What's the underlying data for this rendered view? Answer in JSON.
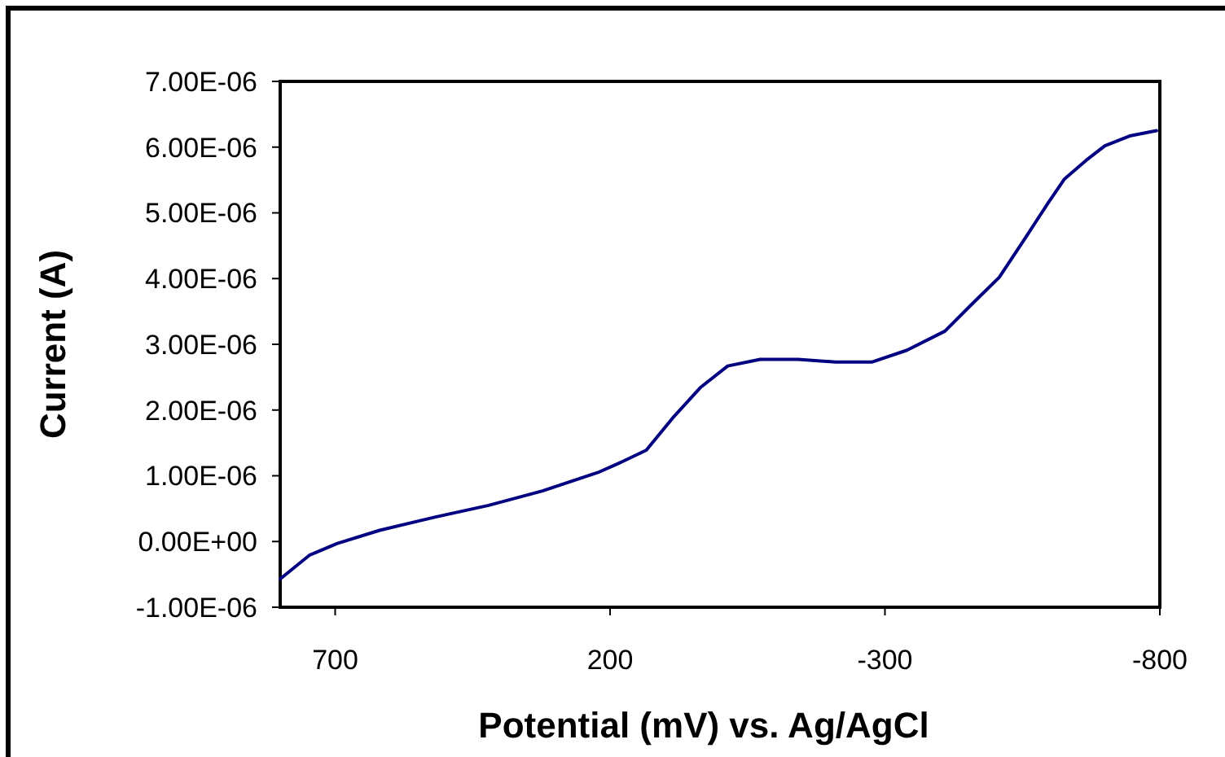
{
  "chart_data": {
    "type": "line",
    "xlabel": "Potential (mV) vs. Ag/AgCl",
    "ylabel": "Current (A)",
    "xlim": [
      800,
      -800
    ],
    "xticks": [
      700,
      200,
      -300,
      -800
    ],
    "ylim": [
      -1e-06,
      7e-06
    ],
    "yticks": [
      {
        "value": -1e-06,
        "label": "-1.00E-06"
      },
      {
        "value": 0,
        "label": "0.00E+00"
      },
      {
        "value": 1e-06,
        "label": "1.00E-06"
      },
      {
        "value": 2e-06,
        "label": "2.00E-06"
      },
      {
        "value": 3e-06,
        "label": "3.00E-06"
      },
      {
        "value": 4e-06,
        "label": "4.00E-06"
      },
      {
        "value": 5e-06,
        "label": "5.00E-06"
      },
      {
        "value": 6e-06,
        "label": "6.00E-06"
      },
      {
        "value": 7e-06,
        "label": "7.00E-06"
      }
    ],
    "marker": "none",
    "line_style": "solid",
    "series": [
      {
        "color": "#000080",
        "x": [
          800,
          747,
          696,
          619,
          519,
          421,
          323,
          222,
          184,
          154,
          134,
          86,
          36,
          -14,
          -73,
          -142,
          -210,
          -276,
          -340,
          -409,
          -458,
          -508,
          -557,
          -596,
          -626,
          -666,
          -700,
          -745,
          -794
        ],
        "values": [
          -5.7e-07,
          -2.1e-07,
          -3e-08,
          1.7e-07,
          3.7e-07,
          5.5e-07,
          7.7e-07,
          1.05e-06,
          1.19e-06,
          1.31e-06,
          1.39e-06,
          1.88e-06,
          2.34e-06,
          2.67e-06,
          2.77e-06,
          2.77e-06,
          2.73e-06,
          2.73e-06,
          2.91e-06,
          3.2e-06,
          3.61e-06,
          4.02e-06,
          4.64e-06,
          5.14e-06,
          5.51e-06,
          5.8e-06,
          6.02e-06,
          6.17e-06,
          6.25e-06
        ]
      }
    ]
  }
}
